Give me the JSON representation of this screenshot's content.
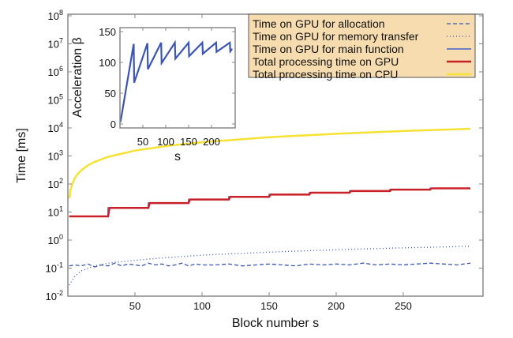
{
  "chart_data": [
    {
      "type": "line",
      "xlabel": "Block number s",
      "ylabel": "Time [ms]",
      "xlim": [
        1,
        310
      ],
      "ylim": [
        0.01,
        100000000
      ],
      "yscale": "log",
      "xticks": [
        50,
        100,
        150,
        200,
        250
      ],
      "yticks": [
        {
          "base": "10",
          "exp": "-2"
        },
        {
          "base": "10",
          "exp": "-1"
        },
        {
          "base": "10",
          "exp": "0"
        },
        {
          "base": "10",
          "exp": "1"
        },
        {
          "base": "10",
          "exp": "2"
        },
        {
          "base": "10",
          "exp": "3"
        },
        {
          "base": "10",
          "exp": "4"
        },
        {
          "base": "10",
          "exp": "5"
        },
        {
          "base": "10",
          "exp": "6"
        },
        {
          "base": "10",
          "exp": "7"
        },
        {
          "base": "10",
          "exp": "8"
        }
      ],
      "grid": false,
      "legend_position": "top-right",
      "legend_background": "#f6dcae",
      "series": [
        {
          "name": "Time on GPU for allocation",
          "color": "#3a55b4",
          "style": "dashed",
          "x": [
            1,
            5,
            10,
            15,
            20,
            25,
            30,
            35,
            40,
            45,
            50,
            55,
            60,
            65,
            70,
            75,
            80,
            85,
            90,
            95,
            100,
            110,
            120,
            130,
            140,
            150,
            160,
            170,
            180,
            190,
            200,
            210,
            220,
            230,
            240,
            250,
            260,
            270,
            280,
            290,
            300
          ],
          "y": [
            0.12,
            0.13,
            0.12,
            0.14,
            0.11,
            0.13,
            0.12,
            0.15,
            0.12,
            0.14,
            0.13,
            0.12,
            0.15,
            0.13,
            0.14,
            0.12,
            0.13,
            0.15,
            0.12,
            0.14,
            0.13,
            0.13,
            0.14,
            0.12,
            0.13,
            0.14,
            0.13,
            0.12,
            0.14,
            0.13,
            0.14,
            0.13,
            0.15,
            0.13,
            0.14,
            0.13,
            0.14,
            0.15,
            0.14,
            0.13,
            0.15
          ]
        },
        {
          "name": "Time on GPU for memory transfer",
          "color": "#3a55b4",
          "style": "dotted",
          "x": [
            1,
            5,
            10,
            20,
            30,
            50,
            75,
            100,
            125,
            150,
            175,
            200,
            225,
            250,
            275,
            300
          ],
          "y": [
            0.025,
            0.05,
            0.08,
            0.12,
            0.15,
            0.19,
            0.24,
            0.29,
            0.33,
            0.37,
            0.41,
            0.45,
            0.49,
            0.53,
            0.56,
            0.6
          ]
        },
        {
          "name": "Time on GPU for main function",
          "color": "#6f7fc0",
          "style": "solid",
          "x": [
            1,
            30,
            30,
            60,
            60,
            90,
            90,
            120,
            120,
            150,
            150,
            180,
            180,
            210,
            210,
            240,
            240,
            270,
            270,
            300
          ],
          "y": [
            7,
            7,
            14,
            14,
            21,
            21,
            28,
            28,
            35,
            35,
            42,
            42,
            49,
            49,
            56,
            56,
            63,
            63,
            70,
            70
          ]
        },
        {
          "name": "Total processing time on GPU",
          "color": "#c82128",
          "style": "solid",
          "x": [
            1,
            30,
            31,
            60,
            61,
            90,
            91,
            120,
            121,
            150,
            151,
            180,
            181,
            210,
            211,
            240,
            241,
            270,
            271,
            300
          ],
          "y": [
            7,
            7,
            14,
            14,
            21,
            21,
            28,
            28,
            35,
            35,
            42,
            42,
            49,
            49,
            56,
            56,
            63,
            63,
            70,
            70
          ]
        },
        {
          "name": "Total processing time on CPU",
          "color": "#f5e232",
          "style": "solid",
          "x": [
            1,
            2,
            3,
            5,
            7,
            10,
            15,
            20,
            30,
            50,
            75,
            100,
            150,
            200,
            250,
            300
          ],
          "y": [
            31,
            62,
            93,
            155,
            217,
            310,
            465,
            620,
            930,
            1550,
            2325,
            3100,
            4650,
            6200,
            7750,
            9300
          ]
        }
      ]
    },
    {
      "type": "line",
      "xlabel": "s",
      "ylabel": "Acceleration β",
      "xlim": [
        0,
        250
      ],
      "ylim": [
        0,
        150
      ],
      "xticks": [
        50,
        100,
        150,
        200
      ],
      "yticks": [
        0,
        50,
        100,
        150
      ],
      "grid": false,
      "series": [
        {
          "color": "#3a55b4",
          "x": [
            1,
            30,
            31,
            60,
            61,
            90,
            91,
            120,
            121,
            150,
            151,
            180,
            181,
            210,
            211,
            240,
            241,
            245
          ],
          "y": [
            3,
            130,
            67,
            131,
            89,
            132,
            99,
            132,
            106,
            132,
            110,
            132,
            114,
            132,
            117,
            132,
            118,
            122
          ]
        }
      ]
    }
  ]
}
